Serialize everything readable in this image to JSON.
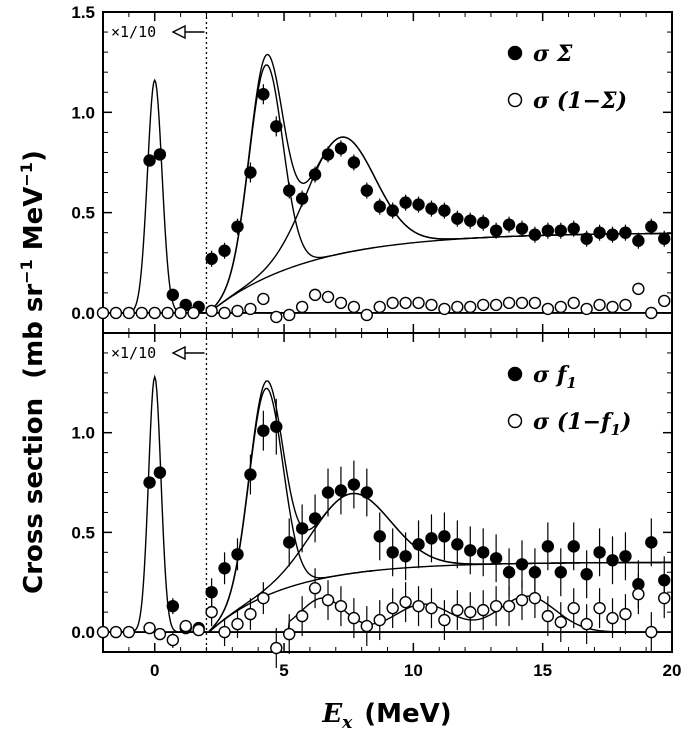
{
  "figure": {
    "ylabel": "Cross section",
    "ylabel_units": "(mb sr",
    "ylabel_exp1": "−1",
    "ylabel_mev": " MeV",
    "ylabel_exp2": "−1",
    "ylabel_close": ")",
    "xlabel_symbol": "E",
    "xlabel_sub": "x",
    "xlabel_units": "(MeV)",
    "scale_note": "×1/10"
  },
  "chart_data": [
    {
      "type": "scatter",
      "panel": "top",
      "xlim": [
        -2,
        20
      ],
      "ylim": [
        -0.1,
        1.5
      ],
      "xticks": [
        0,
        5,
        10,
        15,
        20
      ],
      "xtick_labels": [
        "0",
        "5",
        "10",
        "15",
        "20"
      ],
      "yticks": [
        0.0,
        0.5,
        1.0,
        1.5
      ],
      "ytick_labels": [
        "0.0",
        "0.5",
        "1.0",
        "1.5"
      ],
      "divider_x": 2.0,
      "annotation": "×1/10",
      "legend_position": "top-right",
      "series": [
        {
          "name": "σΣ",
          "label_main": "σ Σ",
          "marker": "filled-circle",
          "x": [
            -0.2,
            0.2,
            0.7,
            1.2,
            1.7,
            2.2,
            2.7,
            3.2,
            3.7,
            4.2,
            4.7,
            5.2,
            5.7,
            6.2,
            6.7,
            7.2,
            7.7,
            8.2,
            8.7,
            9.2,
            9.7,
            10.2,
            10.7,
            11.2,
            11.7,
            12.2,
            12.7,
            13.2,
            13.7,
            14.2,
            14.7,
            15.2,
            15.7,
            16.2,
            16.7,
            17.2,
            17.7,
            18.2,
            18.7,
            19.2,
            19.7
          ],
          "y": [
            0.76,
            0.79,
            0.09,
            0.04,
            0.03,
            0.27,
            0.31,
            0.43,
            0.7,
            1.09,
            0.93,
            0.61,
            0.57,
            0.69,
            0.79,
            0.82,
            0.75,
            0.61,
            0.53,
            0.51,
            0.55,
            0.54,
            0.52,
            0.51,
            0.47,
            0.46,
            0.45,
            0.41,
            0.44,
            0.42,
            0.39,
            0.41,
            0.41,
            0.42,
            0.37,
            0.4,
            0.39,
            0.4,
            0.36,
            0.43,
            0.37
          ],
          "err": [
            0.02,
            0.02,
            0.02,
            0.02,
            0.02,
            0.04,
            0.04,
            0.04,
            0.05,
            0.05,
            0.05,
            0.04,
            0.04,
            0.04,
            0.04,
            0.04,
            0.04,
            0.04,
            0.04,
            0.04,
            0.04,
            0.04,
            0.04,
            0.04,
            0.04,
            0.04,
            0.04,
            0.04,
            0.04,
            0.04,
            0.04,
            0.04,
            0.04,
            0.04,
            0.04,
            0.04,
            0.04,
            0.04,
            0.04,
            0.04,
            0.04
          ]
        },
        {
          "name": "σ(1−Σ)",
          "label_main": "σ (1−Σ)",
          "marker": "open-circle",
          "x": [
            -2.0,
            -1.5,
            -1.0,
            -0.5,
            0.0,
            0.5,
            1.0,
            1.5,
            2.2,
            2.7,
            3.2,
            3.7,
            4.2,
            4.7,
            5.2,
            5.7,
            6.2,
            6.7,
            7.2,
            7.7,
            8.2,
            8.7,
            9.2,
            9.7,
            10.2,
            10.7,
            11.2,
            11.7,
            12.2,
            12.7,
            13.2,
            13.7,
            14.2,
            14.7,
            15.2,
            15.7,
            16.2,
            16.7,
            17.2,
            17.7,
            18.2,
            18.7,
            19.2,
            19.7
          ],
          "y": [
            0.0,
            0.0,
            0.0,
            0.0,
            0.0,
            0.0,
            0.0,
            0.0,
            0.01,
            0.0,
            0.01,
            0.02,
            0.07,
            -0.02,
            -0.01,
            0.03,
            0.09,
            0.08,
            0.05,
            0.03,
            -0.01,
            0.03,
            0.05,
            0.05,
            0.05,
            0.04,
            0.02,
            0.03,
            0.03,
            0.04,
            0.04,
            0.05,
            0.05,
            0.05,
            0.02,
            0.03,
            0.05,
            0.02,
            0.04,
            0.03,
            0.04,
            0.12,
            0.0,
            0.06
          ],
          "err": [
            0,
            0,
            0,
            0,
            0,
            0,
            0,
            0,
            0.02,
            0.02,
            0.02,
            0.02,
            0.02,
            0.02,
            0.02,
            0.02,
            0.02,
            0.02,
            0.02,
            0.02,
            0.02,
            0.02,
            0.02,
            0.02,
            0.02,
            0.02,
            0.02,
            0.02,
            0.02,
            0.02,
            0.02,
            0.02,
            0.02,
            0.02,
            0.02,
            0.02,
            0.02,
            0.02,
            0.02,
            0.02,
            0.02,
            0.02,
            0.02,
            0.02
          ]
        }
      ],
      "fit": {
        "ground_state": {
          "center": 0.0,
          "amplitude": 1.16,
          "sigma": 0.28
        },
        "peak1": {
          "center": 4.3,
          "amplitude": 1.06,
          "sigma": 0.65,
          "cutoff": 2.1
        },
        "peak2": {
          "center": 7.2,
          "amplitude": 0.58,
          "sigma": 1.3,
          "cutoff": 2.1
        },
        "continuum": {
          "onset": 2.1,
          "plateau": 0.4,
          "scale": 3.8
        }
      }
    },
    {
      "type": "scatter",
      "panel": "bottom",
      "xlim": [
        -2,
        20
      ],
      "ylim": [
        -0.1,
        1.5
      ],
      "xticks": [
        0,
        5,
        10,
        15,
        20
      ],
      "xtick_labels": [
        "0",
        "5",
        "10",
        "15",
        "20"
      ],
      "yticks": [
        0.0,
        0.5,
        1.0
      ],
      "ytick_labels": [
        "0.0",
        "0.5",
        "1.0"
      ],
      "divider_x": 2.0,
      "annotation": "×1/10",
      "legend_position": "top-right",
      "series": [
        {
          "name": "σf1",
          "label_main": "σ f",
          "label_sub": "1",
          "marker": "filled-circle",
          "x": [
            -0.2,
            0.2,
            0.7,
            1.2,
            1.7,
            2.2,
            2.7,
            3.2,
            3.7,
            4.2,
            4.7,
            5.2,
            5.7,
            6.2,
            6.7,
            7.2,
            7.7,
            8.2,
            8.7,
            9.2,
            9.7,
            10.2,
            10.7,
            11.2,
            11.7,
            12.2,
            12.7,
            13.2,
            13.7,
            14.2,
            14.7,
            15.2,
            15.7,
            16.2,
            16.7,
            17.2,
            17.7,
            18.2,
            18.7,
            19.2,
            19.7
          ],
          "y": [
            0.75,
            0.8,
            0.13,
            0.02,
            0.02,
            0.2,
            0.32,
            0.39,
            0.79,
            1.01,
            1.03,
            0.45,
            0.52,
            0.57,
            0.7,
            0.71,
            0.74,
            0.7,
            0.48,
            0.4,
            0.38,
            0.44,
            0.47,
            0.48,
            0.44,
            0.41,
            0.4,
            0.37,
            0.3,
            0.34,
            0.3,
            0.43,
            0.3,
            0.43,
            0.29,
            0.4,
            0.36,
            0.38,
            0.24,
            0.45,
            0.26
          ],
          "err": [
            0.03,
            0.03,
            0.04,
            0.03,
            0.03,
            0.07,
            0.08,
            0.08,
            0.1,
            0.1,
            0.14,
            0.12,
            0.12,
            0.12,
            0.12,
            0.12,
            0.12,
            0.12,
            0.12,
            0.12,
            0.12,
            0.12,
            0.12,
            0.12,
            0.12,
            0.12,
            0.12,
            0.12,
            0.12,
            0.12,
            0.12,
            0.12,
            0.12,
            0.12,
            0.12,
            0.12,
            0.12,
            0.12,
            0.12,
            0.12,
            0.12
          ]
        },
        {
          "name": "σ(1−f1)",
          "label_main": "σ (1−f",
          "label_sub": "1",
          "label_tail": ")",
          "marker": "open-circle",
          "x": [
            -2.0,
            -1.5,
            -1.0,
            -0.2,
            0.2,
            0.7,
            1.2,
            1.7,
            2.2,
            2.7,
            3.2,
            3.7,
            4.2,
            4.7,
            5.2,
            5.7,
            6.2,
            6.7,
            7.2,
            7.7,
            8.2,
            8.7,
            9.2,
            9.7,
            10.2,
            10.7,
            11.2,
            11.7,
            12.2,
            12.7,
            13.2,
            13.7,
            14.2,
            14.7,
            15.2,
            15.7,
            16.2,
            16.7,
            17.2,
            17.7,
            18.2,
            18.7,
            19.2,
            19.7
          ],
          "y": [
            0.0,
            0.0,
            0.0,
            0.02,
            -0.01,
            -0.04,
            0.03,
            0.01,
            0.1,
            0.0,
            0.04,
            0.09,
            0.17,
            -0.08,
            -0.01,
            0.08,
            0.22,
            0.16,
            0.13,
            0.07,
            0.03,
            0.06,
            0.12,
            0.15,
            0.13,
            0.12,
            0.06,
            0.11,
            0.1,
            0.11,
            0.13,
            0.13,
            0.16,
            0.17,
            0.08,
            0.05,
            0.12,
            0.04,
            0.12,
            0.07,
            0.09,
            0.19,
            0.0,
            0.17
          ],
          "err": [
            0.01,
            0.01,
            0.01,
            0.03,
            0.03,
            0.04,
            0.03,
            0.03,
            0.07,
            0.07,
            0.07,
            0.08,
            0.08,
            0.1,
            0.1,
            0.1,
            0.1,
            0.1,
            0.1,
            0.1,
            0.1,
            0.1,
            0.1,
            0.1,
            0.1,
            0.1,
            0.1,
            0.1,
            0.1,
            0.1,
            0.1,
            0.1,
            0.1,
            0.1,
            0.1,
            0.1,
            0.1,
            0.1,
            0.1,
            0.1,
            0.1,
            0.1,
            0.1,
            0.1
          ]
        }
      ],
      "fit": {
        "ground_state": {
          "center": 0.0,
          "amplitude": 1.28,
          "sigma": 0.24
        },
        "peak1": {
          "center": 4.3,
          "amplitude": 1.04,
          "sigma": 0.65,
          "cutoff": 2.1
        },
        "peak2": {
          "center": 7.6,
          "amplitude": 0.4,
          "sigma": 1.5,
          "cutoff": 2.1
        },
        "continuum": {
          "onset": 2.1,
          "plateau": 0.35,
          "scale": 3.0
        },
        "minor_peaks": [
          {
            "center": 6.5,
            "amplitude": 0.17,
            "sigma": 0.85
          },
          {
            "center": 10.4,
            "amplitude": 0.14,
            "sigma": 1.1
          },
          {
            "center": 14.4,
            "amplitude": 0.18,
            "sigma": 1.1
          }
        ]
      }
    }
  ]
}
